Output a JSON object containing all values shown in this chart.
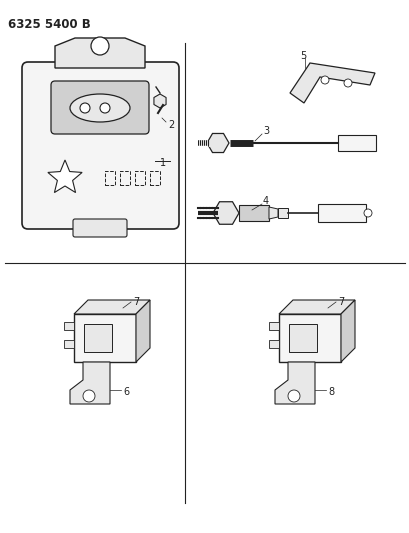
{
  "title": "6325 5400 B",
  "bg_color": "#ffffff",
  "line_color": "#222222",
  "fill_light": "#f5f5f5",
  "fill_mid": "#e8e8e8",
  "fill_dark": "#d0d0d0"
}
